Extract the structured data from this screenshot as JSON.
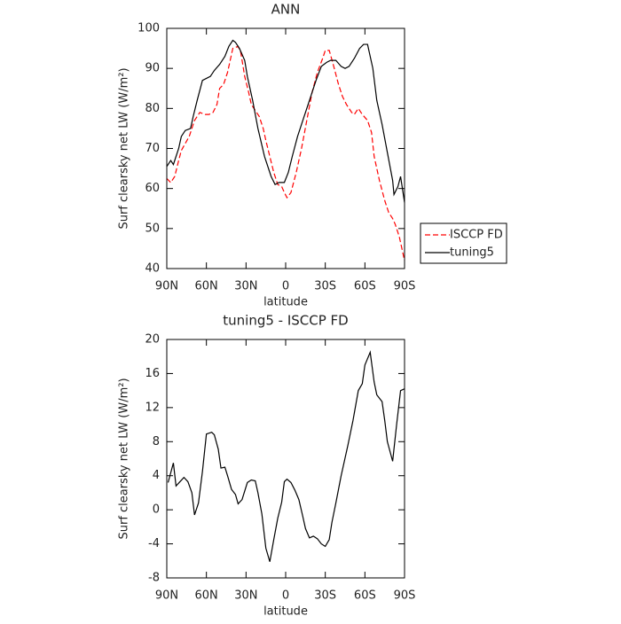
{
  "chart_data": [
    {
      "type": "line",
      "title": "ANN",
      "xlabel": "latitude",
      "ylabel": "Surf clearsky net LW (W/m²)",
      "xlim": [
        90,
        -90
      ],
      "ylim": [
        40,
        100
      ],
      "xticks": [
        {
          "value": 90,
          "label": "90N"
        },
        {
          "value": 60,
          "label": "60N"
        },
        {
          "value": 30,
          "label": "30N"
        },
        0,
        {
          "value": -30,
          "label": "30S"
        },
        {
          "value": -60,
          "label": "60S"
        },
        {
          "value": -90,
          "label": "90S"
        }
      ],
      "yticks": [
        40,
        50,
        60,
        70,
        80,
        90,
        100
      ],
      "legend": "right",
      "series": [
        {
          "name": "ISCCP FD",
          "color": "#ff0000",
          "dashed": true,
          "x": [
            90,
            87,
            84,
            81,
            79,
            73,
            69,
            65,
            61,
            58,
            55,
            52,
            50,
            47,
            44,
            42,
            40,
            36,
            34,
            31,
            28,
            26,
            22,
            20,
            17,
            15,
            12,
            9,
            6,
            3,
            1,
            -1,
            -4,
            -8,
            -12,
            -16,
            -20,
            -24,
            -28,
            -30,
            -33,
            -36,
            -40,
            -43,
            -46,
            -50,
            -52,
            -55,
            -58,
            -62,
            -65,
            -67,
            -71,
            -75,
            -78,
            -81,
            -83,
            -86,
            -88,
            -90
          ],
          "values": [
            62.5,
            61.5,
            63,
            67,
            69.5,
            73,
            77,
            79,
            78.5,
            78.5,
            79,
            81,
            85,
            86,
            89,
            92,
            95,
            95.5,
            94,
            88,
            84,
            81,
            79,
            78,
            75,
            72,
            68,
            64,
            61,
            60.5,
            59,
            57.7,
            59,
            64,
            70,
            77,
            84,
            89,
            92.5,
            94.5,
            94.5,
            91,
            86,
            83,
            81,
            79,
            78.5,
            80,
            78.5,
            77,
            74,
            68,
            62,
            57,
            54,
            52.5,
            51,
            48,
            45,
            42
          ]
        },
        {
          "name": "tuning5",
          "color": "#000000",
          "dashed": false,
          "x": [
            90,
            87,
            85,
            81,
            79,
            76,
            72,
            70,
            67,
            63,
            60,
            57,
            54,
            50,
            46,
            43,
            40,
            38,
            35,
            31,
            29,
            25,
            21,
            16,
            11,
            8,
            5,
            1,
            -2,
            -5,
            -9,
            -14,
            -19,
            -23,
            -27,
            -31,
            -34,
            -38,
            -42,
            -45,
            -48,
            -52,
            -56,
            -59,
            -62,
            -66,
            -69,
            -73,
            -77,
            -81,
            -82,
            -85,
            -87,
            -90
          ],
          "values": [
            65.5,
            67,
            66,
            70,
            73,
            74.5,
            75,
            78,
            82,
            87,
            87.5,
            88,
            89.5,
            91,
            93,
            95.5,
            97,
            96.5,
            95,
            92,
            88,
            82,
            75,
            68,
            63,
            61,
            61.5,
            61.5,
            64,
            68,
            73,
            78,
            83,
            87,
            90.5,
            91.5,
            92,
            92,
            90.5,
            90,
            90.5,
            92.5,
            95,
            96,
            96,
            90,
            82,
            76,
            69,
            62,
            58.5,
            60.5,
            63,
            56.5
          ]
        }
      ]
    },
    {
      "type": "line",
      "title": "tuning5 - ISCCP FD",
      "xlabel": "latitude",
      "ylabel": "Surf clearsky net LW (W/m²)",
      "xlim": [
        90,
        -90
      ],
      "ylim": [
        -8,
        20
      ],
      "xticks": [
        {
          "value": 90,
          "label": "90N"
        },
        {
          "value": 60,
          "label": "60N"
        },
        {
          "value": 30,
          "label": "30N"
        },
        0,
        {
          "value": -30,
          "label": "30S"
        },
        {
          "value": -60,
          "label": "60S"
        },
        {
          "value": -90,
          "label": "90S"
        }
      ],
      "yticks": [
        -8,
        -4,
        0,
        4,
        8,
        12,
        16,
        20
      ],
      "series": [
        {
          "color": "#000000",
          "dashed": false,
          "x": [
            89,
            85,
            83,
            80,
            77,
            74,
            71,
            69,
            66,
            63,
            60,
            56,
            54,
            51,
            49,
            46,
            44,
            41,
            38,
            36,
            33,
            29,
            26,
            23,
            21,
            18,
            15,
            12,
            9,
            6,
            3,
            1,
            -1,
            -4,
            -7,
            -10,
            -13,
            -15,
            -18,
            -21,
            -24,
            -27,
            -30,
            -33,
            -35,
            -38,
            -42,
            -47,
            -51,
            -55,
            -58,
            -60,
            -64,
            -67,
            -69,
            -73,
            -75,
            -77,
            -81,
            -84,
            -87,
            -90
          ],
          "values": [
            3.2,
            5.5,
            2.8,
            3.3,
            3.8,
            3.3,
            2,
            -0.6,
            0.8,
            4.5,
            8.9,
            9.1,
            8.8,
            7.1,
            4.9,
            5,
            4,
            2.4,
            1.8,
            0.7,
            1.2,
            3.2,
            3.5,
            3.4,
            2,
            -0.5,
            -4.5,
            -6.1,
            -3.5,
            -1,
            0.9,
            3.3,
            3.6,
            3.2,
            2.3,
            1.2,
            -0.8,
            -2.2,
            -3.3,
            -3.1,
            -3.4,
            -4,
            -4.3,
            -3.5,
            -1.5,
            0.8,
            4,
            7.5,
            10.5,
            14,
            14.8,
            17,
            18.5,
            15,
            13.5,
            12.7,
            10.5,
            8,
            5.7,
            10,
            14,
            14.2
          ]
        }
      ]
    }
  ]
}
